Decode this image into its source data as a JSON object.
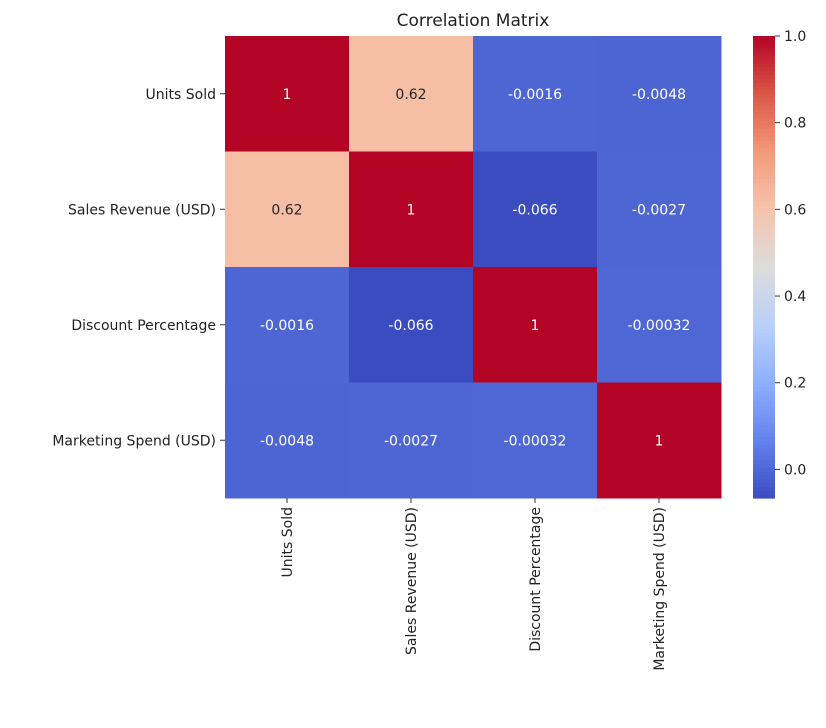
{
  "chart_data": {
    "type": "heatmap",
    "title": "Correlation Matrix",
    "row_labels": [
      "Units Sold",
      "Sales Revenue (USD)",
      "Discount Percentage",
      "Marketing Spend (USD)"
    ],
    "col_labels": [
      "Units Sold",
      "Sales Revenue (USD)",
      "Discount Percentage",
      "Marketing Spend (USD)"
    ],
    "values": [
      [
        1,
        0.62,
        -0.0016,
        -0.0048
      ],
      [
        0.62,
        1,
        -0.066,
        -0.0027
      ],
      [
        -0.0016,
        -0.066,
        1,
        -0.00032
      ],
      [
        -0.0048,
        -0.0027,
        -0.00032,
        1
      ]
    ],
    "annotations": [
      [
        "1",
        "0.62",
        "-0.0016",
        "-0.0048"
      ],
      [
        "0.62",
        "1",
        "-0.066",
        "-0.0027"
      ],
      [
        "-0.0016",
        "-0.066",
        "1",
        "-0.00032"
      ],
      [
        "-0.0048",
        "-0.0027",
        "-0.00032",
        "1"
      ]
    ],
    "colormap": "coolwarm",
    "vmin": -0.066,
    "vmax": 1.0,
    "colorbar_ticks": [
      0.0,
      0.2,
      0.4,
      0.6,
      0.8,
      1.0
    ],
    "colorbar_tick_labels": [
      "0.0",
      "0.2",
      "0.4",
      "0.6",
      "0.8",
      "1.0"
    ],
    "colorbar_placement": "right"
  }
}
